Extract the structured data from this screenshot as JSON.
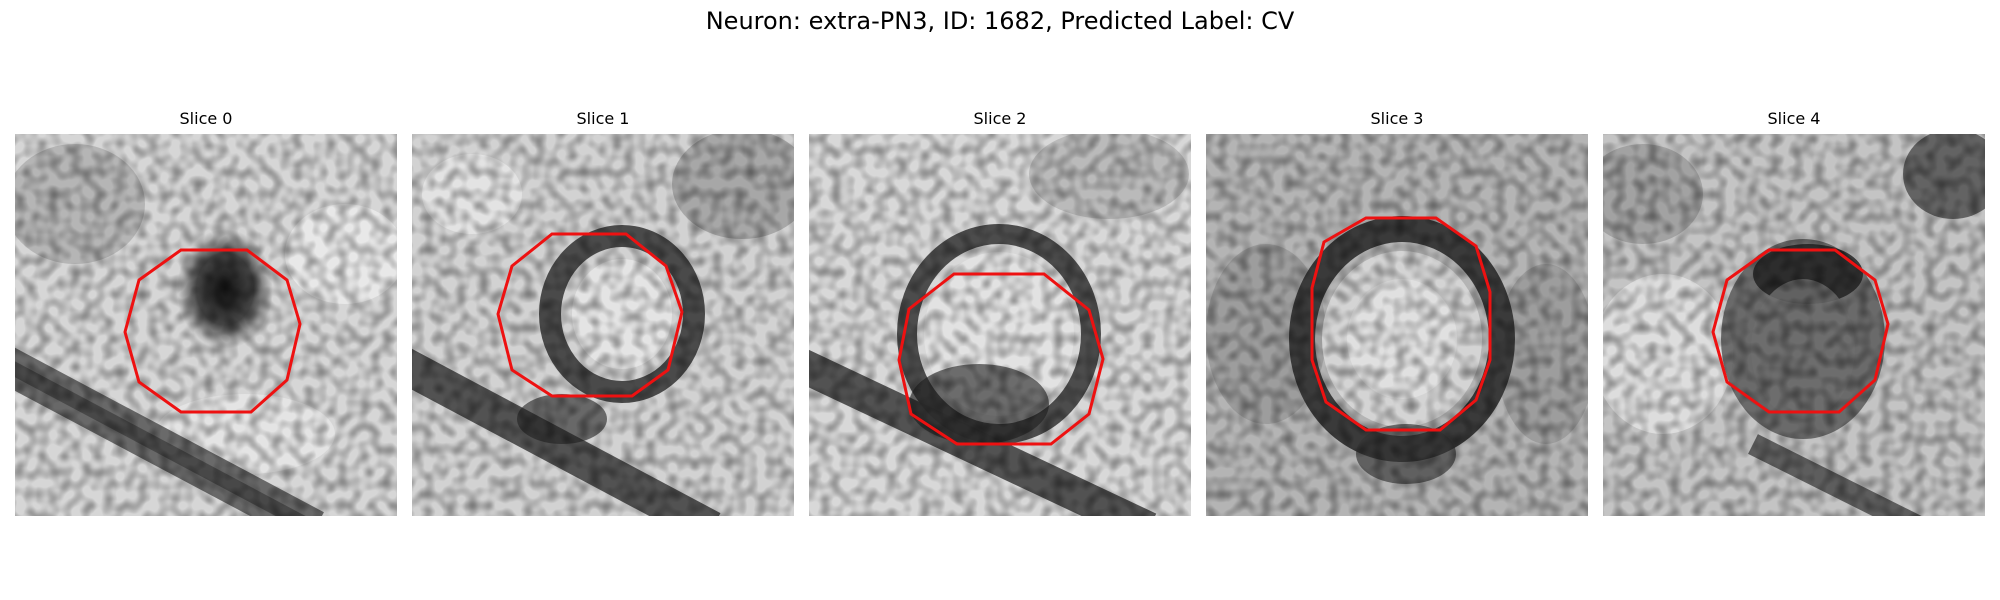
{
  "figure": {
    "title": "Neuron: extra-PN3, ID: 1682, Predicted Label: CV"
  },
  "slices": [
    {
      "title": "Slice 0"
    },
    {
      "title": "Slice 1"
    },
    {
      "title": "Slice 2"
    },
    {
      "title": "Slice 3"
    },
    {
      "title": "Slice 4"
    }
  ],
  "colors": {
    "contour": "#ee1111",
    "background": "#ffffff"
  }
}
